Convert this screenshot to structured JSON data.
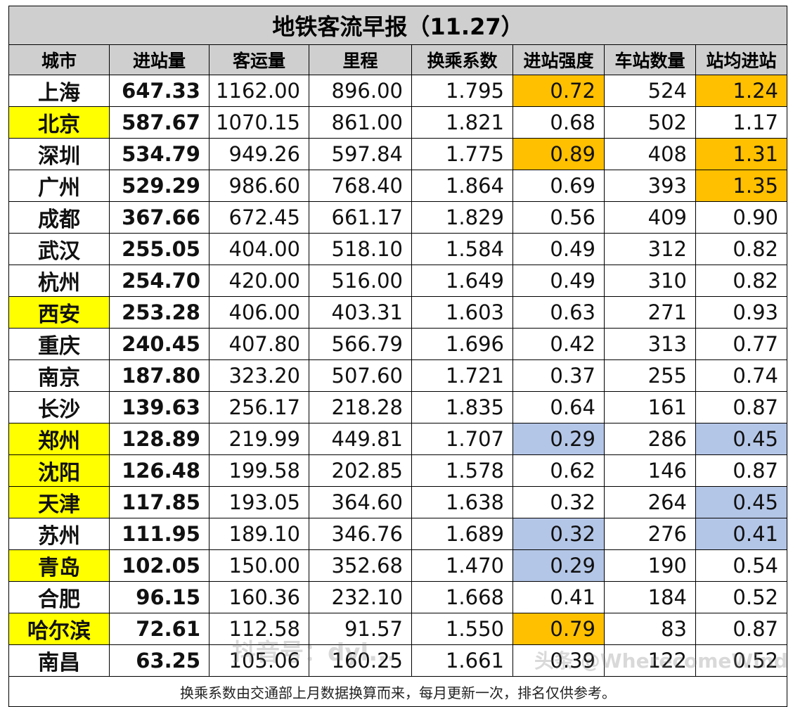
{
  "title": "地铁客流早报（11.27）",
  "columns": [
    "城市",
    "进站量",
    "客运量",
    "里程",
    "换乘系数",
    "进站强度",
    "车站数量",
    "站均进站"
  ],
  "rows": [
    {
      "city": "上海",
      "entries": "647.33",
      "ridership": "1162.00",
      "mileage": "896.00",
      "transfer": "1.795",
      "intensity": "0.72",
      "stations": "524",
      "avg": "1.24",
      "city_hl": "",
      "intensity_hl": "orange",
      "avg_hl": "orange"
    },
    {
      "city": "北京",
      "entries": "587.67",
      "ridership": "1070.15",
      "mileage": "861.00",
      "transfer": "1.821",
      "intensity": "0.68",
      "stations": "502",
      "avg": "1.17",
      "city_hl": "yellow",
      "intensity_hl": "",
      "avg_hl": ""
    },
    {
      "city": "深圳",
      "entries": "534.79",
      "ridership": "949.26",
      "mileage": "597.84",
      "transfer": "1.775",
      "intensity": "0.89",
      "stations": "408",
      "avg": "1.31",
      "city_hl": "",
      "intensity_hl": "orange",
      "avg_hl": "orange"
    },
    {
      "city": "广州",
      "entries": "529.29",
      "ridership": "986.60",
      "mileage": "768.40",
      "transfer": "1.864",
      "intensity": "0.69",
      "stations": "393",
      "avg": "1.35",
      "city_hl": "",
      "intensity_hl": "",
      "avg_hl": "orange"
    },
    {
      "city": "成都",
      "entries": "367.66",
      "ridership": "672.45",
      "mileage": "661.17",
      "transfer": "1.829",
      "intensity": "0.56",
      "stations": "409",
      "avg": "0.90",
      "city_hl": "",
      "intensity_hl": "",
      "avg_hl": ""
    },
    {
      "city": "武汉",
      "entries": "255.05",
      "ridership": "404.00",
      "mileage": "518.10",
      "transfer": "1.584",
      "intensity": "0.49",
      "stations": "312",
      "avg": "0.82",
      "city_hl": "",
      "intensity_hl": "",
      "avg_hl": ""
    },
    {
      "city": "杭州",
      "entries": "254.70",
      "ridership": "420.00",
      "mileage": "516.00",
      "transfer": "1.649",
      "intensity": "0.49",
      "stations": "310",
      "avg": "0.82",
      "city_hl": "",
      "intensity_hl": "",
      "avg_hl": ""
    },
    {
      "city": "西安",
      "entries": "253.28",
      "ridership": "406.00",
      "mileage": "403.31",
      "transfer": "1.603",
      "intensity": "0.63",
      "stations": "271",
      "avg": "0.93",
      "city_hl": "yellow",
      "intensity_hl": "",
      "avg_hl": ""
    },
    {
      "city": "重庆",
      "entries": "240.45",
      "ridership": "407.80",
      "mileage": "566.79",
      "transfer": "1.696",
      "intensity": "0.42",
      "stations": "313",
      "avg": "0.77",
      "city_hl": "",
      "intensity_hl": "",
      "avg_hl": ""
    },
    {
      "city": "南京",
      "entries": "187.80",
      "ridership": "323.20",
      "mileage": "507.60",
      "transfer": "1.721",
      "intensity": "0.37",
      "stations": "255",
      "avg": "0.74",
      "city_hl": "",
      "intensity_hl": "",
      "avg_hl": ""
    },
    {
      "city": "长沙",
      "entries": "139.63",
      "ridership": "256.17",
      "mileage": "218.28",
      "transfer": "1.835",
      "intensity": "0.64",
      "stations": "161",
      "avg": "0.87",
      "city_hl": "",
      "intensity_hl": "",
      "avg_hl": ""
    },
    {
      "city": "郑州",
      "entries": "128.89",
      "ridership": "219.99",
      "mileage": "449.81",
      "transfer": "1.707",
      "intensity": "0.29",
      "stations": "286",
      "avg": "0.45",
      "city_hl": "yellow",
      "intensity_hl": "blue",
      "avg_hl": "blue"
    },
    {
      "city": "沈阳",
      "entries": "126.48",
      "ridership": "199.58",
      "mileage": "202.85",
      "transfer": "1.578",
      "intensity": "0.62",
      "stations": "146",
      "avg": "0.87",
      "city_hl": "yellow",
      "intensity_hl": "",
      "avg_hl": ""
    },
    {
      "city": "天津",
      "entries": "117.85",
      "ridership": "193.05",
      "mileage": "364.60",
      "transfer": "1.638",
      "intensity": "0.32",
      "stations": "264",
      "avg": "0.45",
      "city_hl": "yellow",
      "intensity_hl": "",
      "avg_hl": "blue"
    },
    {
      "city": "苏州",
      "entries": "111.95",
      "ridership": "189.10",
      "mileage": "346.76",
      "transfer": "1.689",
      "intensity": "0.32",
      "stations": "276",
      "avg": "0.41",
      "city_hl": "",
      "intensity_hl": "blue",
      "avg_hl": "blue"
    },
    {
      "city": "青岛",
      "entries": "102.05",
      "ridership": "150.00",
      "mileage": "352.68",
      "transfer": "1.470",
      "intensity": "0.29",
      "stations": "190",
      "avg": "0.54",
      "city_hl": "yellow",
      "intensity_hl": "blue",
      "avg_hl": ""
    },
    {
      "city": "合肥",
      "entries": "96.15",
      "ridership": "160.36",
      "mileage": "232.10",
      "transfer": "1.668",
      "intensity": "0.41",
      "stations": "184",
      "avg": "0.52",
      "city_hl": "",
      "intensity_hl": "",
      "avg_hl": ""
    },
    {
      "city": "哈尔滨",
      "entries": "72.61",
      "ridership": "112.58",
      "mileage": "91.57",
      "transfer": "1.550",
      "intensity": "0.79",
      "stations": "83",
      "avg": "0.87",
      "city_hl": "yellow",
      "intensity_hl": "orange",
      "avg_hl": ""
    },
    {
      "city": "南昌",
      "entries": "63.25",
      "ridership": "105.06",
      "mileage": "160.25",
      "transfer": "1.661",
      "intensity": "0.39",
      "stations": "122",
      "avg": "0.52",
      "city_hl": "",
      "intensity_hl": "",
      "avg_hl": ""
    }
  ],
  "note": "换乘系数由交通部上月数据换算而来，每月更新一次，排名仅供参考。",
  "watermarks": {
    "left": "抖音号：dyl...",
    "right": "头条 @WherecomeWind"
  },
  "colors": {
    "yellow": "#ffff00",
    "orange": "#ffc000",
    "blue": "#b4c6e7",
    "header_bg": "#cfcfcf"
  }
}
